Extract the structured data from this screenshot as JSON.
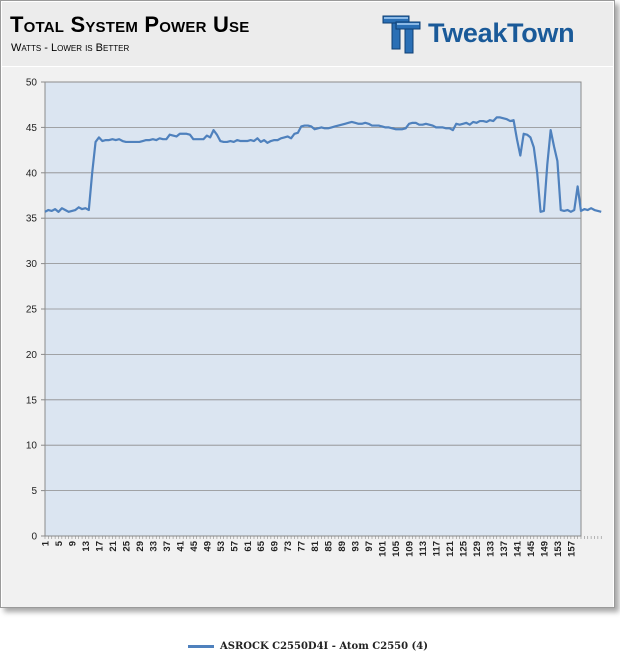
{
  "header": {
    "title": "Total System Power Use",
    "subtitle": "Watts - Lower is Better",
    "logo_text": "TweakTown"
  },
  "chart_data": {
    "type": "line",
    "title": "Total System Power Use",
    "subtitle": "Watts - Lower is Better",
    "ylabel": "",
    "xlabel": "",
    "ylim": [
      0,
      50
    ],
    "yticks": [
      0,
      5,
      10,
      15,
      20,
      25,
      30,
      35,
      40,
      45,
      50
    ],
    "xlim": [
      1,
      160
    ],
    "xtick_labels": [
      1,
      5,
      9,
      13,
      17,
      21,
      25,
      29,
      33,
      37,
      41,
      45,
      49,
      53,
      57,
      61,
      65,
      69,
      73,
      77,
      81,
      85,
      89,
      93,
      97,
      101,
      105,
      109,
      113,
      117,
      121,
      125,
      129,
      133,
      137,
      141,
      145,
      149,
      153,
      157
    ],
    "grid": true,
    "legend_position": "bottom",
    "line_color": "#4f81bd",
    "plot_bg": "#dbe5f1",
    "series": [
      {
        "name": "ASROCK C2550D4I - Atom C2550 (4)",
        "values": [
          35.7,
          35.9,
          35.8,
          36.0,
          35.7,
          36.1,
          35.9,
          35.7,
          35.8,
          35.9,
          36.2,
          36.0,
          36.1,
          35.9,
          40.0,
          43.4,
          43.9,
          43.5,
          43.6,
          43.6,
          43.7,
          43.6,
          43.7,
          43.5,
          43.4,
          43.4,
          43.4,
          43.4,
          43.4,
          43.5,
          43.6,
          43.6,
          43.7,
          43.6,
          43.8,
          43.7,
          43.7,
          44.2,
          44.1,
          44.0,
          44.3,
          44.3,
          44.3,
          44.2,
          43.7,
          43.7,
          43.7,
          43.7,
          44.1,
          43.9,
          44.7,
          44.2,
          43.5,
          43.4,
          43.4,
          43.5,
          43.4,
          43.6,
          43.5,
          43.5,
          43.5,
          43.6,
          43.5,
          43.8,
          43.4,
          43.6,
          43.3,
          43.5,
          43.6,
          43.6,
          43.8,
          43.9,
          44.0,
          43.8,
          44.3,
          44.4,
          45.1,
          45.2,
          45.2,
          45.1,
          44.8,
          44.9,
          45.0,
          44.9,
          44.9,
          45.0,
          45.1,
          45.2,
          45.3,
          45.4,
          45.5,
          45.6,
          45.5,
          45.4,
          45.4,
          45.5,
          45.4,
          45.2,
          45.2,
          45.2,
          45.1,
          45.0,
          45.0,
          44.9,
          44.8,
          44.8,
          44.8,
          44.9,
          45.4,
          45.5,
          45.5,
          45.3,
          45.3,
          45.4,
          45.3,
          45.2,
          45.0,
          45.0,
          45.0,
          44.9,
          44.9,
          44.7,
          45.4,
          45.3,
          45.4,
          45.5,
          45.3,
          45.6,
          45.5,
          45.7,
          45.7,
          45.6,
          45.8,
          45.7,
          46.1,
          46.1,
          46.0,
          45.9,
          45.7,
          45.8,
          43.7,
          41.9,
          44.3,
          44.2,
          43.9,
          42.8,
          40.0,
          35.7,
          35.8,
          40.9,
          44.7,
          42.9,
          41.3,
          35.9,
          35.8,
          35.9,
          35.7,
          35.9,
          38.5,
          35.8,
          36.0,
          35.9,
          36.1,
          35.9,
          35.8,
          35.7
        ]
      }
    ]
  }
}
